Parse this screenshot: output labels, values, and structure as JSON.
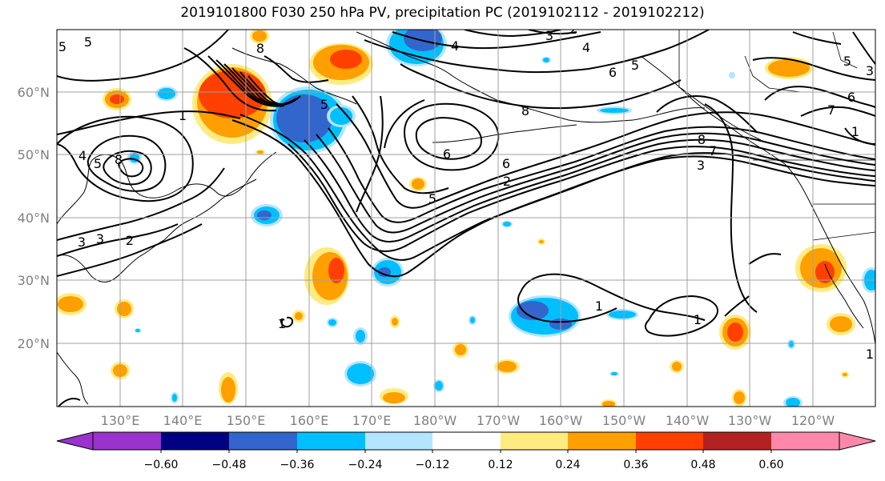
{
  "title": "2019101800 F030 250 hPa PV, precipitation PC (2019102112 - 2019102212)",
  "lat_labels": [
    "60°N",
    "50°N",
    "40°N",
    "30°N",
    "20°N"
  ],
  "lon_labels": [
    "130°E",
    "140°E",
    "150°E",
    "160°E",
    "170°E",
    "180°W",
    "170°W",
    "160°W",
    "150°W",
    "140°W",
    "130°W",
    "120°W"
  ],
  "contour_labels": [
    "5",
    "5",
    "8",
    "4",
    "3",
    "2",
    "4",
    "6",
    "5",
    "8",
    "1",
    "4",
    "5",
    "6",
    "6",
    "5",
    "3",
    "2",
    "5",
    "8",
    "3",
    "7",
    "6",
    "7",
    "1",
    "1",
    "1",
    "1",
    "5",
    "3",
    "2",
    "3",
    "1",
    "8"
  ],
  "colorbar": {
    "colors": [
      "#9933cc",
      "#000080",
      "#3366cc",
      "#00bfff",
      "#b3e5ff",
      "#ffffff",
      "#ffeb80",
      "#ff9f00",
      "#ff4000",
      "#b22222",
      "#ff88aa"
    ],
    "tick_labels": [
      "−0.60",
      "−0.48",
      "−0.36",
      "−0.24",
      "−0.12",
      "0.12",
      "0.24",
      "0.36",
      "0.48",
      "0.60"
    ]
  },
  "map_data": {
    "type": "contour",
    "projection": "cylindrical",
    "lon_range": [
      120,
      250
    ],
    "lat_range": [
      10,
      70
    ],
    "grid": true,
    "fields": [
      "250 hPa PV",
      "precipitation PC"
    ]
  }
}
